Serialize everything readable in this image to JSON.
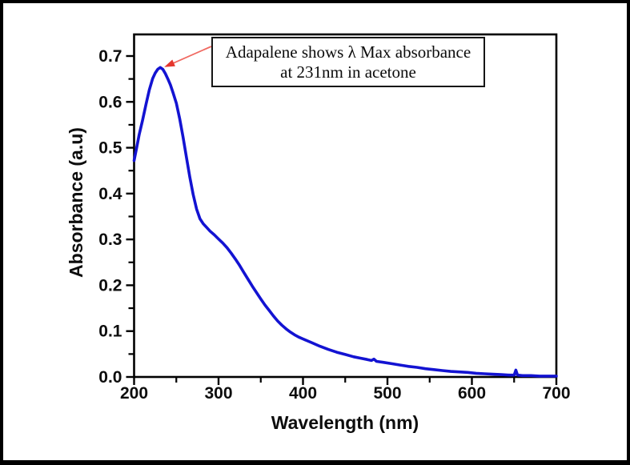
{
  "figure": {
    "background": "#ffffff",
    "border_color": "#000000",
    "axis_color": "#000000",
    "tick_label_color": "#0d0d0d"
  },
  "chart_data": {
    "type": "line",
    "title": "",
    "xlabel": "Wavelength (nm)",
    "ylabel": "Absorbance (a.u)",
    "x_range": [
      200,
      700
    ],
    "y_range": [
      0,
      0.75
    ],
    "grid": false,
    "legend": null,
    "x_major_ticks": [
      200,
      300,
      400,
      500,
      600,
      700
    ],
    "x_tick_labels": [
      "200",
      "300",
      "400",
      "500",
      "600",
      "700"
    ],
    "x_minor_ticks": [
      250,
      350,
      450,
      550,
      650
    ],
    "y_major_ticks": [
      0.0,
      0.1,
      0.2,
      0.3,
      0.4,
      0.5,
      0.6,
      0.7
    ],
    "y_tick_labels": [
      "0.0",
      "0.1",
      "0.2",
      "0.3",
      "0.4",
      "0.5",
      "0.6",
      "0.7"
    ],
    "y_minor_ticks": [
      0.05,
      0.15,
      0.25,
      0.35,
      0.45,
      0.55,
      0.65
    ],
    "peak": {
      "wavelength_nm": 231,
      "absorbance": 0.675
    },
    "annotation": {
      "line1": "Adapalene shows λ Max absorbance",
      "line2": "at 231nm in acetone",
      "arrow_line_color": "#f06a62",
      "arrow_head_color": "#e5372e"
    },
    "series": [
      {
        "name": "Adapalene UV absorbance spectrum in acetone",
        "color": "#1313d2",
        "points": [
          [
            200,
            0.472
          ],
          [
            203,
            0.5
          ],
          [
            206,
            0.528
          ],
          [
            210,
            0.56
          ],
          [
            214,
            0.594
          ],
          [
            218,
            0.626
          ],
          [
            222,
            0.651
          ],
          [
            225,
            0.663
          ],
          [
            228,
            0.671
          ],
          [
            231,
            0.675
          ],
          [
            234,
            0.671
          ],
          [
            237,
            0.662
          ],
          [
            240,
            0.65
          ],
          [
            243,
            0.637
          ],
          [
            246,
            0.621
          ],
          [
            250,
            0.597
          ],
          [
            254,
            0.563
          ],
          [
            258,
            0.523
          ],
          [
            262,
            0.479
          ],
          [
            266,
            0.436
          ],
          [
            270,
            0.398
          ],
          [
            274,
            0.366
          ],
          [
            278,
            0.345
          ],
          [
            282,
            0.334
          ],
          [
            286,
            0.326
          ],
          [
            290,
            0.318
          ],
          [
            295,
            0.31
          ],
          [
            300,
            0.301
          ],
          [
            305,
            0.292
          ],
          [
            310,
            0.282
          ],
          [
            315,
            0.27
          ],
          [
            320,
            0.257
          ],
          [
            325,
            0.243
          ],
          [
            330,
            0.228
          ],
          [
            335,
            0.213
          ],
          [
            340,
            0.198
          ],
          [
            345,
            0.184
          ],
          [
            350,
            0.17
          ],
          [
            355,
            0.157
          ],
          [
            360,
            0.145
          ],
          [
            365,
            0.133
          ],
          [
            370,
            0.122
          ],
          [
            375,
            0.113
          ],
          [
            380,
            0.105
          ],
          [
            385,
            0.098
          ],
          [
            390,
            0.092
          ],
          [
            395,
            0.087
          ],
          [
            400,
            0.083
          ],
          [
            410,
            0.075
          ],
          [
            420,
            0.067
          ],
          [
            430,
            0.06
          ],
          [
            440,
            0.054
          ],
          [
            450,
            0.049
          ],
          [
            460,
            0.044
          ],
          [
            468,
            0.041
          ],
          [
            476,
            0.038
          ],
          [
            481,
            0.036
          ],
          [
            484,
            0.039
          ],
          [
            487,
            0.034
          ],
          [
            495,
            0.032
          ],
          [
            505,
            0.029
          ],
          [
            515,
            0.026
          ],
          [
            525,
            0.023
          ],
          [
            535,
            0.021
          ],
          [
            545,
            0.018
          ],
          [
            555,
            0.016
          ],
          [
            565,
            0.014
          ],
          [
            575,
            0.012
          ],
          [
            585,
            0.011
          ],
          [
            595,
            0.01
          ],
          [
            605,
            0.008
          ],
          [
            615,
            0.007
          ],
          [
            625,
            0.006
          ],
          [
            635,
            0.005
          ],
          [
            645,
            0.004
          ],
          [
            650,
            0.004
          ],
          [
            652,
            0.015
          ],
          [
            654,
            0.004
          ],
          [
            660,
            0.003
          ],
          [
            670,
            0.003
          ],
          [
            680,
            0.002
          ],
          [
            690,
            0.002
          ],
          [
            700,
            0.002
          ]
        ]
      }
    ]
  }
}
